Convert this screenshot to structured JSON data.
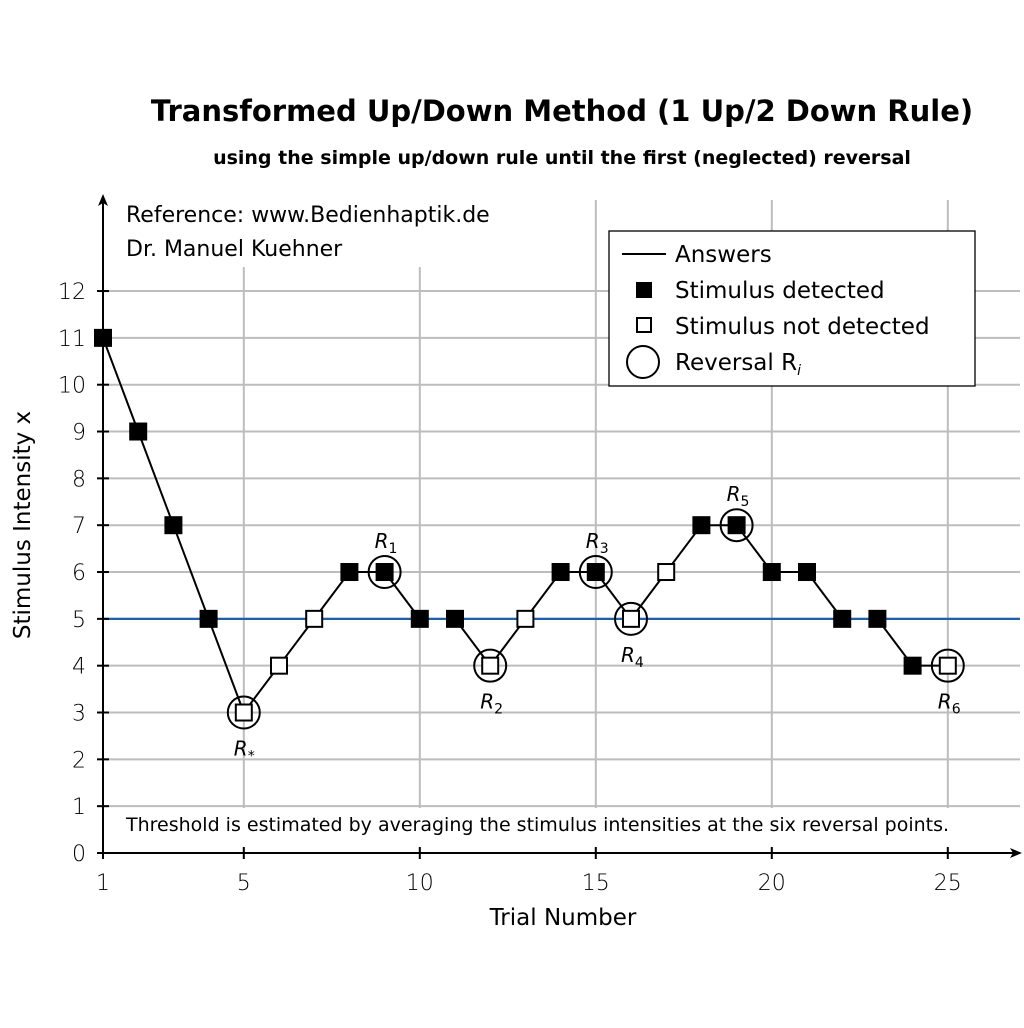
{
  "chart_data": {
    "type": "line",
    "title": "Transformed Up/Down Method (1 Up/2 Down Rule)",
    "subtitle": "using the simple up/down rule until the first (neglected) reversal",
    "xlabel": "Trial Number",
    "ylabel": "Stimulus Intensity x",
    "xlim": [
      1,
      27
    ],
    "ylim": [
      0,
      13
    ],
    "xticks": [
      "1",
      "5",
      "10",
      "15",
      "20",
      "25"
    ],
    "xtick_values": [
      1,
      5,
      10,
      15,
      20,
      25
    ],
    "yticks": [
      "0",
      "1",
      "2",
      "3",
      "4",
      "5",
      "6",
      "7",
      "8",
      "9",
      "10",
      "11",
      "12"
    ],
    "grid": true,
    "reference_line": {
      "y": 5,
      "color": "#1f5fa8"
    },
    "annotations": {
      "reference": "Reference: www.Bedienhaptik.de",
      "author": "Dr. Manuel Kuehner",
      "note": "Threshold is estimated by averaging the stimulus intensities at the six reversal points."
    },
    "legend": {
      "placement": "top-right",
      "entries": [
        "Answers",
        "Stimulus detected",
        "Stimulus not detected",
        "Reversal R"
      ],
      "reversal_subscript": "i"
    },
    "trials": [
      1,
      2,
      3,
      4,
      5,
      6,
      7,
      8,
      9,
      10,
      11,
      12,
      13,
      14,
      15,
      16,
      17,
      18,
      19,
      20,
      21,
      22,
      23,
      24,
      25
    ],
    "intensity": [
      11,
      9,
      7,
      5,
      3,
      4,
      5,
      6,
      6,
      5,
      5,
      4,
      5,
      6,
      6,
      5,
      6,
      7,
      7,
      6,
      6,
      5,
      5,
      4,
      4
    ],
    "detected": [
      true,
      true,
      true,
      true,
      false,
      false,
      false,
      true,
      true,
      true,
      true,
      false,
      false,
      true,
      true,
      false,
      false,
      true,
      true,
      true,
      true,
      true,
      true,
      true,
      false
    ],
    "line_segments": [
      [
        1,
        10
      ],
      [
        11,
        22
      ],
      [
        23,
        25
      ]
    ],
    "reversals": [
      {
        "trial": 5,
        "label": "R",
        "sub": "*",
        "side": "below"
      },
      {
        "trial": 9,
        "label": "R",
        "sub": "1",
        "side": "above"
      },
      {
        "trial": 12,
        "label": "R",
        "sub": "2",
        "side": "below"
      },
      {
        "trial": 15,
        "label": "R",
        "sub": "3",
        "side": "above"
      },
      {
        "trial": 16,
        "label": "R",
        "sub": "4",
        "side": "below"
      },
      {
        "trial": 19,
        "label": "R",
        "sub": "5",
        "side": "above"
      },
      {
        "trial": 25,
        "label": "R",
        "sub": "6",
        "side": "below"
      }
    ]
  }
}
